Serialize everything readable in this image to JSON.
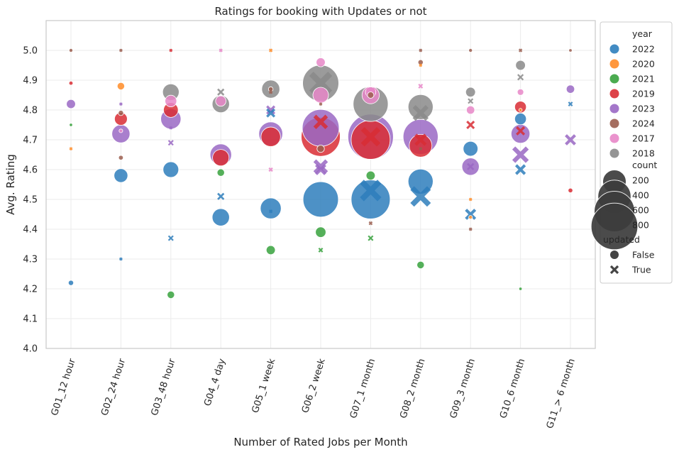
{
  "chart_data": {
    "type": "scatter",
    "title": "Ratings for booking with Updates or not",
    "xlabel": "Number of Rated Jobs per Month",
    "ylabel": "Avg. Rating",
    "ylim": [
      4.0,
      5.1
    ],
    "grid": true,
    "legend_placement": "right-outside",
    "categories": [
      "G01_12 hour",
      "G02_24 hour",
      "G03_48 hour",
      "G04_4 day",
      "G05_1 week",
      "G06_2 week",
      "G07_1 month",
      "G08_2 month",
      "G09_3 month",
      "G10_6 month",
      "G11_> 6 month"
    ],
    "yticks": [
      "4.0",
      "4.1",
      "4.2",
      "4.3",
      "4.4",
      "4.5",
      "4.6",
      "4.7",
      "4.8",
      "4.9",
      "5.0"
    ],
    "legend": {
      "hue_title": "year",
      "years": [
        {
          "label": "2022",
          "color": "#2e7ebc"
        },
        {
          "label": "2020",
          "color": "#ff8c28"
        },
        {
          "label": "2021",
          "color": "#37a23d"
        },
        {
          "label": "2019",
          "color": "#d92d34"
        },
        {
          "label": "2023",
          "color": "#9a68c4"
        },
        {
          "label": "2024",
          "color": "#9b5e4f"
        },
        {
          "label": "2017",
          "color": "#e887c8"
        },
        {
          "label": "2018",
          "color": "#8a8a8a"
        }
      ],
      "size_title": "count",
      "sizes": [
        {
          "label": "200",
          "value": 200
        },
        {
          "label": "400",
          "value": 400
        },
        {
          "label": "600",
          "value": 600
        },
        {
          "label": "800",
          "value": 800
        }
      ],
      "style_title": "updated",
      "styles": [
        {
          "label": "False",
          "marker": "circle"
        },
        {
          "label": "True",
          "marker": "x"
        }
      ]
    },
    "points": [
      {
        "g": 0,
        "year": "2024",
        "updated": false,
        "y": 5.0,
        "count": 5
      },
      {
        "g": 0,
        "year": "2019",
        "updated": false,
        "y": 4.89,
        "count": 6
      },
      {
        "g": 0,
        "year": "2023",
        "updated": false,
        "y": 4.82,
        "count": 30
      },
      {
        "g": 0,
        "year": "2021",
        "updated": false,
        "y": 4.75,
        "count": 2
      },
      {
        "g": 0,
        "year": "2020",
        "updated": true,
        "y": 4.67,
        "count": 1
      },
      {
        "g": 0,
        "year": "2022",
        "updated": false,
        "y": 4.22,
        "count": 10
      },
      {
        "g": 1,
        "year": "2024",
        "updated": true,
        "y": 5.0,
        "count": 1
      },
      {
        "g": 1,
        "year": "2020",
        "updated": false,
        "y": 4.88,
        "count": 20
      },
      {
        "g": 1,
        "year": "2023",
        "updated": true,
        "y": 4.82,
        "count": 2
      },
      {
        "g": 1,
        "year": "2024",
        "updated": false,
        "y": 4.79,
        "count": 10
      },
      {
        "g": 1,
        "year": "2019",
        "updated": false,
        "y": 4.77,
        "count": 60
      },
      {
        "g": 1,
        "year": "2017",
        "updated": false,
        "y": 4.73,
        "count": 5
      },
      {
        "g": 1,
        "year": "2023",
        "updated": false,
        "y": 4.72,
        "count": 120
      },
      {
        "g": 1,
        "year": "2024",
        "updated": false,
        "y": 4.64,
        "count": 8
      },
      {
        "g": 1,
        "year": "2022",
        "updated": false,
        "y": 4.58,
        "count": 70
      },
      {
        "g": 1,
        "year": "2022",
        "updated": true,
        "y": 4.3,
        "count": 3
      },
      {
        "g": 2,
        "year": "2019",
        "updated": true,
        "y": 5.0,
        "count": 1
      },
      {
        "g": 2,
        "year": "2018",
        "updated": false,
        "y": 4.86,
        "count": 100
      },
      {
        "g": 2,
        "year": "2017",
        "updated": false,
        "y": 4.83,
        "count": 50
      },
      {
        "g": 2,
        "year": "2019",
        "updated": false,
        "y": 4.8,
        "count": 80
      },
      {
        "g": 2,
        "year": "2023",
        "updated": false,
        "y": 4.77,
        "count": 150
      },
      {
        "g": 2,
        "year": "2023",
        "updated": true,
        "y": 4.74,
        "count": 4
      },
      {
        "g": 2,
        "year": "2023",
        "updated": true,
        "y": 4.69,
        "count": 15
      },
      {
        "g": 2,
        "year": "2022",
        "updated": false,
        "y": 4.6,
        "count": 90
      },
      {
        "g": 2,
        "year": "2022",
        "updated": true,
        "y": 4.37,
        "count": 15
      },
      {
        "g": 2,
        "year": "2021",
        "updated": false,
        "y": 4.18,
        "count": 20
      },
      {
        "g": 3,
        "year": "2017",
        "updated": true,
        "y": 5.0,
        "count": 5
      },
      {
        "g": 3,
        "year": "2018",
        "updated": true,
        "y": 4.86,
        "count": 25
      },
      {
        "g": 3,
        "year": "2018",
        "updated": false,
        "y": 4.82,
        "count": 110
      },
      {
        "g": 3,
        "year": "2017",
        "updated": false,
        "y": 4.83,
        "count": 40
      },
      {
        "g": 3,
        "year": "2023",
        "updated": false,
        "y": 4.65,
        "count": 170
      },
      {
        "g": 3,
        "year": "2019",
        "updated": false,
        "y": 4.64,
        "count": 100
      },
      {
        "g": 3,
        "year": "2021",
        "updated": false,
        "y": 4.59,
        "count": 20
      },
      {
        "g": 3,
        "year": "2022",
        "updated": true,
        "y": 4.51,
        "count": 25
      },
      {
        "g": 3,
        "year": "2022",
        "updated": false,
        "y": 4.44,
        "count": 110
      },
      {
        "g": 4,
        "year": "2020",
        "updated": true,
        "y": 5.0,
        "count": 5
      },
      {
        "g": 4,
        "year": "2018",
        "updated": false,
        "y": 4.87,
        "count": 120
      },
      {
        "g": 4,
        "year": "2024",
        "updated": false,
        "y": 4.87,
        "count": 8
      },
      {
        "g": 4,
        "year": "2024",
        "updated": true,
        "y": 4.86,
        "count": 5
      },
      {
        "g": 4,
        "year": "2023",
        "updated": true,
        "y": 4.8,
        "count": 40
      },
      {
        "g": 4,
        "year": "2022",
        "updated": true,
        "y": 4.79,
        "count": 40
      },
      {
        "g": 4,
        "year": "2023",
        "updated": false,
        "y": 4.72,
        "count": 210
      },
      {
        "g": 4,
        "year": "2019",
        "updated": false,
        "y": 4.71,
        "count": 140
      },
      {
        "g": 4,
        "year": "2017",
        "updated": true,
        "y": 4.6,
        "count": 8
      },
      {
        "g": 4,
        "year": "2022",
        "updated": false,
        "y": 4.47,
        "count": 160
      },
      {
        "g": 4,
        "year": "2022",
        "updated": true,
        "y": 4.46,
        "count": 5
      },
      {
        "g": 4,
        "year": "2021",
        "updated": false,
        "y": 4.33,
        "count": 30
      },
      {
        "g": 5,
        "year": "2017",
        "updated": false,
        "y": 4.96,
        "count": 30
      },
      {
        "g": 5,
        "year": "2018",
        "updated": false,
        "y": 4.89,
        "count": 480
      },
      {
        "g": 5,
        "year": "2018",
        "updated": true,
        "y": 4.89,
        "count": 250
      },
      {
        "g": 5,
        "year": "2017",
        "updated": false,
        "y": 4.85,
        "count": 90
      },
      {
        "g": 5,
        "year": "2024",
        "updated": true,
        "y": 4.82,
        "count": 3
      },
      {
        "g": 5,
        "year": "2019",
        "updated": true,
        "y": 4.76,
        "count": 100
      },
      {
        "g": 5,
        "year": "2023",
        "updated": false,
        "y": 4.74,
        "count": 500
      },
      {
        "g": 5,
        "year": "2019",
        "updated": false,
        "y": 4.71,
        "count": 560
      },
      {
        "g": 5,
        "year": "2024",
        "updated": false,
        "y": 4.67,
        "count": 20
      },
      {
        "g": 5,
        "year": "2023",
        "updated": true,
        "y": 4.61,
        "count": 100
      },
      {
        "g": 5,
        "year": "2023",
        "updated": true,
        "y": 4.6,
        "count": 60
      },
      {
        "g": 5,
        "year": "2022",
        "updated": false,
        "y": 4.5,
        "count": 460
      },
      {
        "g": 5,
        "year": "2021",
        "updated": false,
        "y": 4.39,
        "count": 40
      },
      {
        "g": 5,
        "year": "2021",
        "updated": true,
        "y": 4.33,
        "count": 10
      },
      {
        "g": 6,
        "year": "2017",
        "updated": false,
        "y": 4.86,
        "count": 40
      },
      {
        "g": 6,
        "year": "2017",
        "updated": true,
        "y": 4.86,
        "count": 40
      },
      {
        "g": 6,
        "year": "2024",
        "updated": false,
        "y": 4.85,
        "count": 15
      },
      {
        "g": 6,
        "year": "2017",
        "updated": false,
        "y": 4.85,
        "count": 110
      },
      {
        "g": 6,
        "year": "2018",
        "updated": false,
        "y": 4.82,
        "count": 450
      },
      {
        "g": 6,
        "year": "2023",
        "updated": false,
        "y": 4.71,
        "count": 760
      },
      {
        "g": 6,
        "year": "2019",
        "updated": false,
        "y": 4.7,
        "count": 560
      },
      {
        "g": 6,
        "year": "2019",
        "updated": true,
        "y": 4.71,
        "count": 180
      },
      {
        "g": 6,
        "year": "2021",
        "updated": false,
        "y": 4.58,
        "count": 30
      },
      {
        "g": 6,
        "year": "2022",
        "updated": true,
        "y": 4.53,
        "count": 220
      },
      {
        "g": 6,
        "year": "2022",
        "updated": false,
        "y": 4.5,
        "count": 560
      },
      {
        "g": 6,
        "year": "2024",
        "updated": true,
        "y": 4.42,
        "count": 6
      },
      {
        "g": 6,
        "year": "2021",
        "updated": true,
        "y": 4.37,
        "count": 15
      },
      {
        "g": 7,
        "year": "2024",
        "updated": true,
        "y": 5.0,
        "count": 4
      },
      {
        "g": 7,
        "year": "2024",
        "updated": false,
        "y": 4.96,
        "count": 10
      },
      {
        "g": 7,
        "year": "2020",
        "updated": true,
        "y": 4.95,
        "count": 3
      },
      {
        "g": 7,
        "year": "2017",
        "updated": true,
        "y": 4.88,
        "count": 10
      },
      {
        "g": 7,
        "year": "2018",
        "updated": false,
        "y": 4.81,
        "count": 230
      },
      {
        "g": 7,
        "year": "2018",
        "updated": true,
        "y": 4.79,
        "count": 120
      },
      {
        "g": 7,
        "year": "2023",
        "updated": false,
        "y": 4.71,
        "count": 450
      },
      {
        "g": 7,
        "year": "2019",
        "updated": false,
        "y": 4.68,
        "count": 190
      },
      {
        "g": 7,
        "year": "2019",
        "updated": true,
        "y": 4.7,
        "count": 70
      },
      {
        "g": 7,
        "year": "2024",
        "updated": true,
        "y": 4.67,
        "count": 4
      },
      {
        "g": 7,
        "year": "2022",
        "updated": false,
        "y": 4.56,
        "count": 230
      },
      {
        "g": 7,
        "year": "2022",
        "updated": true,
        "y": 4.51,
        "count": 200
      },
      {
        "g": 7,
        "year": "2021",
        "updated": false,
        "y": 4.28,
        "count": 20
      },
      {
        "g": 8,
        "year": "2024",
        "updated": false,
        "y": 5.0,
        "count": 5
      },
      {
        "g": 8,
        "year": "2018",
        "updated": false,
        "y": 4.86,
        "count": 35
      },
      {
        "g": 8,
        "year": "2018",
        "updated": true,
        "y": 4.83,
        "count": 15
      },
      {
        "g": 8,
        "year": "2017",
        "updated": false,
        "y": 4.8,
        "count": 25
      },
      {
        "g": 8,
        "year": "2019",
        "updated": true,
        "y": 4.75,
        "count": 35
      },
      {
        "g": 8,
        "year": "2022",
        "updated": false,
        "y": 4.67,
        "count": 80
      },
      {
        "g": 8,
        "year": "2023",
        "updated": false,
        "y": 4.61,
        "count": 110
      },
      {
        "g": 8,
        "year": "2023",
        "updated": true,
        "y": 4.61,
        "count": 25
      },
      {
        "g": 8,
        "year": "2020",
        "updated": true,
        "y": 4.5,
        "count": 1
      },
      {
        "g": 8,
        "year": "2022",
        "updated": true,
        "y": 4.45,
        "count": 60
      },
      {
        "g": 8,
        "year": "2020",
        "updated": false,
        "y": 4.44,
        "count": 5
      },
      {
        "g": 8,
        "year": "2024",
        "updated": true,
        "y": 4.4,
        "count": 4
      },
      {
        "g": 9,
        "year": "2024",
        "updated": true,
        "y": 5.0,
        "count": 5
      },
      {
        "g": 9,
        "year": "2018",
        "updated": false,
        "y": 4.95,
        "count": 35
      },
      {
        "g": 9,
        "year": "2018",
        "updated": true,
        "y": 4.91,
        "count": 20
      },
      {
        "g": 9,
        "year": "2017",
        "updated": false,
        "y": 4.86,
        "count": 15
      },
      {
        "g": 9,
        "year": "2019",
        "updated": false,
        "y": 4.81,
        "count": 50
      },
      {
        "g": 9,
        "year": "2020",
        "updated": false,
        "y": 4.8,
        "count": 4
      },
      {
        "g": 9,
        "year": "2022",
        "updated": false,
        "y": 4.77,
        "count": 50
      },
      {
        "g": 9,
        "year": "2019",
        "updated": true,
        "y": 4.73,
        "count": 40
      },
      {
        "g": 9,
        "year": "2023",
        "updated": false,
        "y": 4.72,
        "count": 130
      },
      {
        "g": 9,
        "year": "2023",
        "updated": true,
        "y": 4.65,
        "count": 130
      },
      {
        "g": 9,
        "year": "2022",
        "updated": true,
        "y": 4.6,
        "count": 55
      },
      {
        "g": 9,
        "year": "2021",
        "updated": false,
        "y": 4.2,
        "count": 2
      },
      {
        "g": 10,
        "year": "2024",
        "updated": false,
        "y": 5.0,
        "count": 4
      },
      {
        "g": 10,
        "year": "2023",
        "updated": false,
        "y": 4.87,
        "count": 25
      },
      {
        "g": 10,
        "year": "2022",
        "updated": true,
        "y": 4.82,
        "count": 10
      },
      {
        "g": 10,
        "year": "2023",
        "updated": true,
        "y": 4.7,
        "count": 60
      },
      {
        "g": 10,
        "year": "2019",
        "updated": false,
        "y": 4.53,
        "count": 8
      }
    ]
  }
}
